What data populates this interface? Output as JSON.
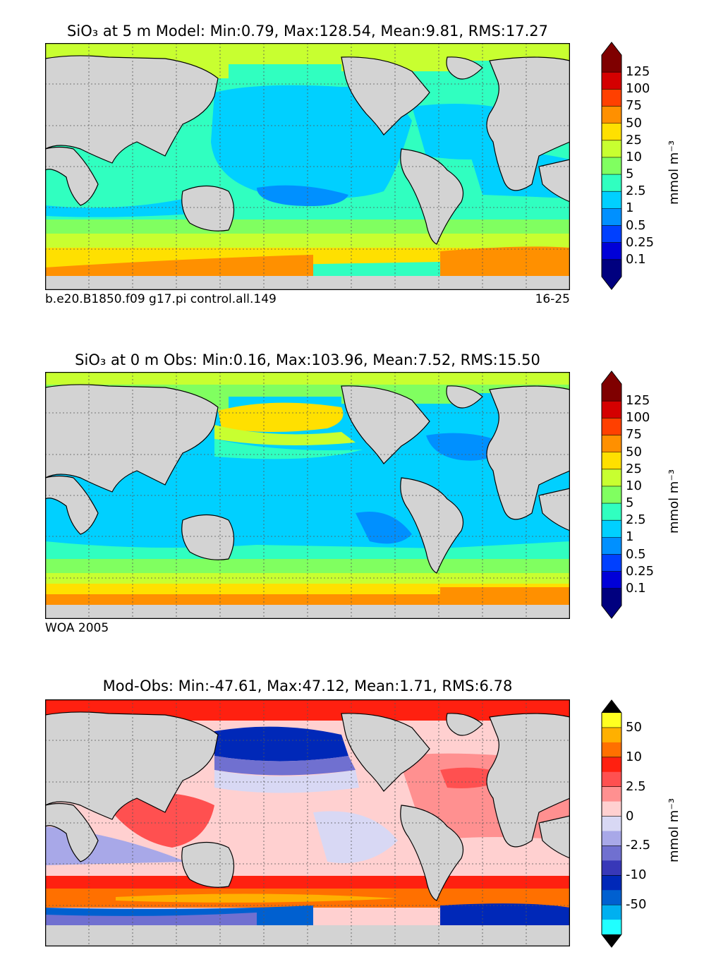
{
  "panels": [
    {
      "title": "SiO₃ at 5 m Model: Min:0.79, Max:128.54, Mean:9.81, RMS:17.27",
      "footer_left": "b.e20.B1850.f09 g17.pi control.all.149",
      "footer_right": "16-25",
      "colorbar": {
        "ticks": [
          "125",
          "100",
          "75",
          "50",
          "25",
          "10",
          "5",
          "2.5",
          "1",
          "0.5",
          "0.25",
          "0.1"
        ],
        "colors": [
          "#7f0000",
          "#d40000",
          "#ff4000",
          "#ff9000",
          "#ffe000",
          "#c8ff30",
          "#80ff60",
          "#30ffc0",
          "#00d0ff",
          "#0090ff",
          "#0040ff",
          "#0000d8",
          "#00007f"
        ],
        "extend_top": "#7f0000",
        "extend_bottom": "#00007f",
        "unit": "mmol m⁻³"
      }
    },
    {
      "title": "SiO₃ at 0 m Obs: Min:0.16, Max:103.96, Mean:7.52, RMS:15.50",
      "footer_left": "WOA 2005",
      "footer_right": "",
      "colorbar": {
        "ticks": [
          "125",
          "100",
          "75",
          "50",
          "25",
          "10",
          "5",
          "2.5",
          "1",
          "0.5",
          "0.25",
          "0.1"
        ],
        "colors": [
          "#7f0000",
          "#d40000",
          "#ff4000",
          "#ff9000",
          "#ffe000",
          "#c8ff30",
          "#80ff60",
          "#30ffc0",
          "#00d0ff",
          "#0090ff",
          "#0040ff",
          "#0000d8",
          "#00007f"
        ],
        "extend_top": "#7f0000",
        "extend_bottom": "#00007f",
        "unit": "mmol m⁻³"
      }
    },
    {
      "title": "Mod-Obs: Min:-47.61, Max:47.12, Mean:1.71, RMS:6.78",
      "footer_left": "",
      "footer_right": "",
      "colorbar": {
        "ticks": [
          "50",
          "10",
          "2.5",
          "0",
          "-2.5",
          "-10",
          "-50"
        ],
        "tick_slots": [
          1,
          3,
          5,
          7,
          9,
          11,
          13
        ],
        "colors": [
          "#ffff20",
          "#ffb000",
          "#ff7000",
          "#ff2010",
          "#ff5050",
          "#ff9090",
          "#ffd0d0",
          "#d8d8f4",
          "#a8a8e8",
          "#7070d0",
          "#3838b8",
          "#0028b8",
          "#0060d0",
          "#00b0f0",
          "#20ffff"
        ],
        "extend_top": "#000000",
        "extend_bottom": "#000000",
        "unit": "mmol m⁻³"
      }
    }
  ]
}
